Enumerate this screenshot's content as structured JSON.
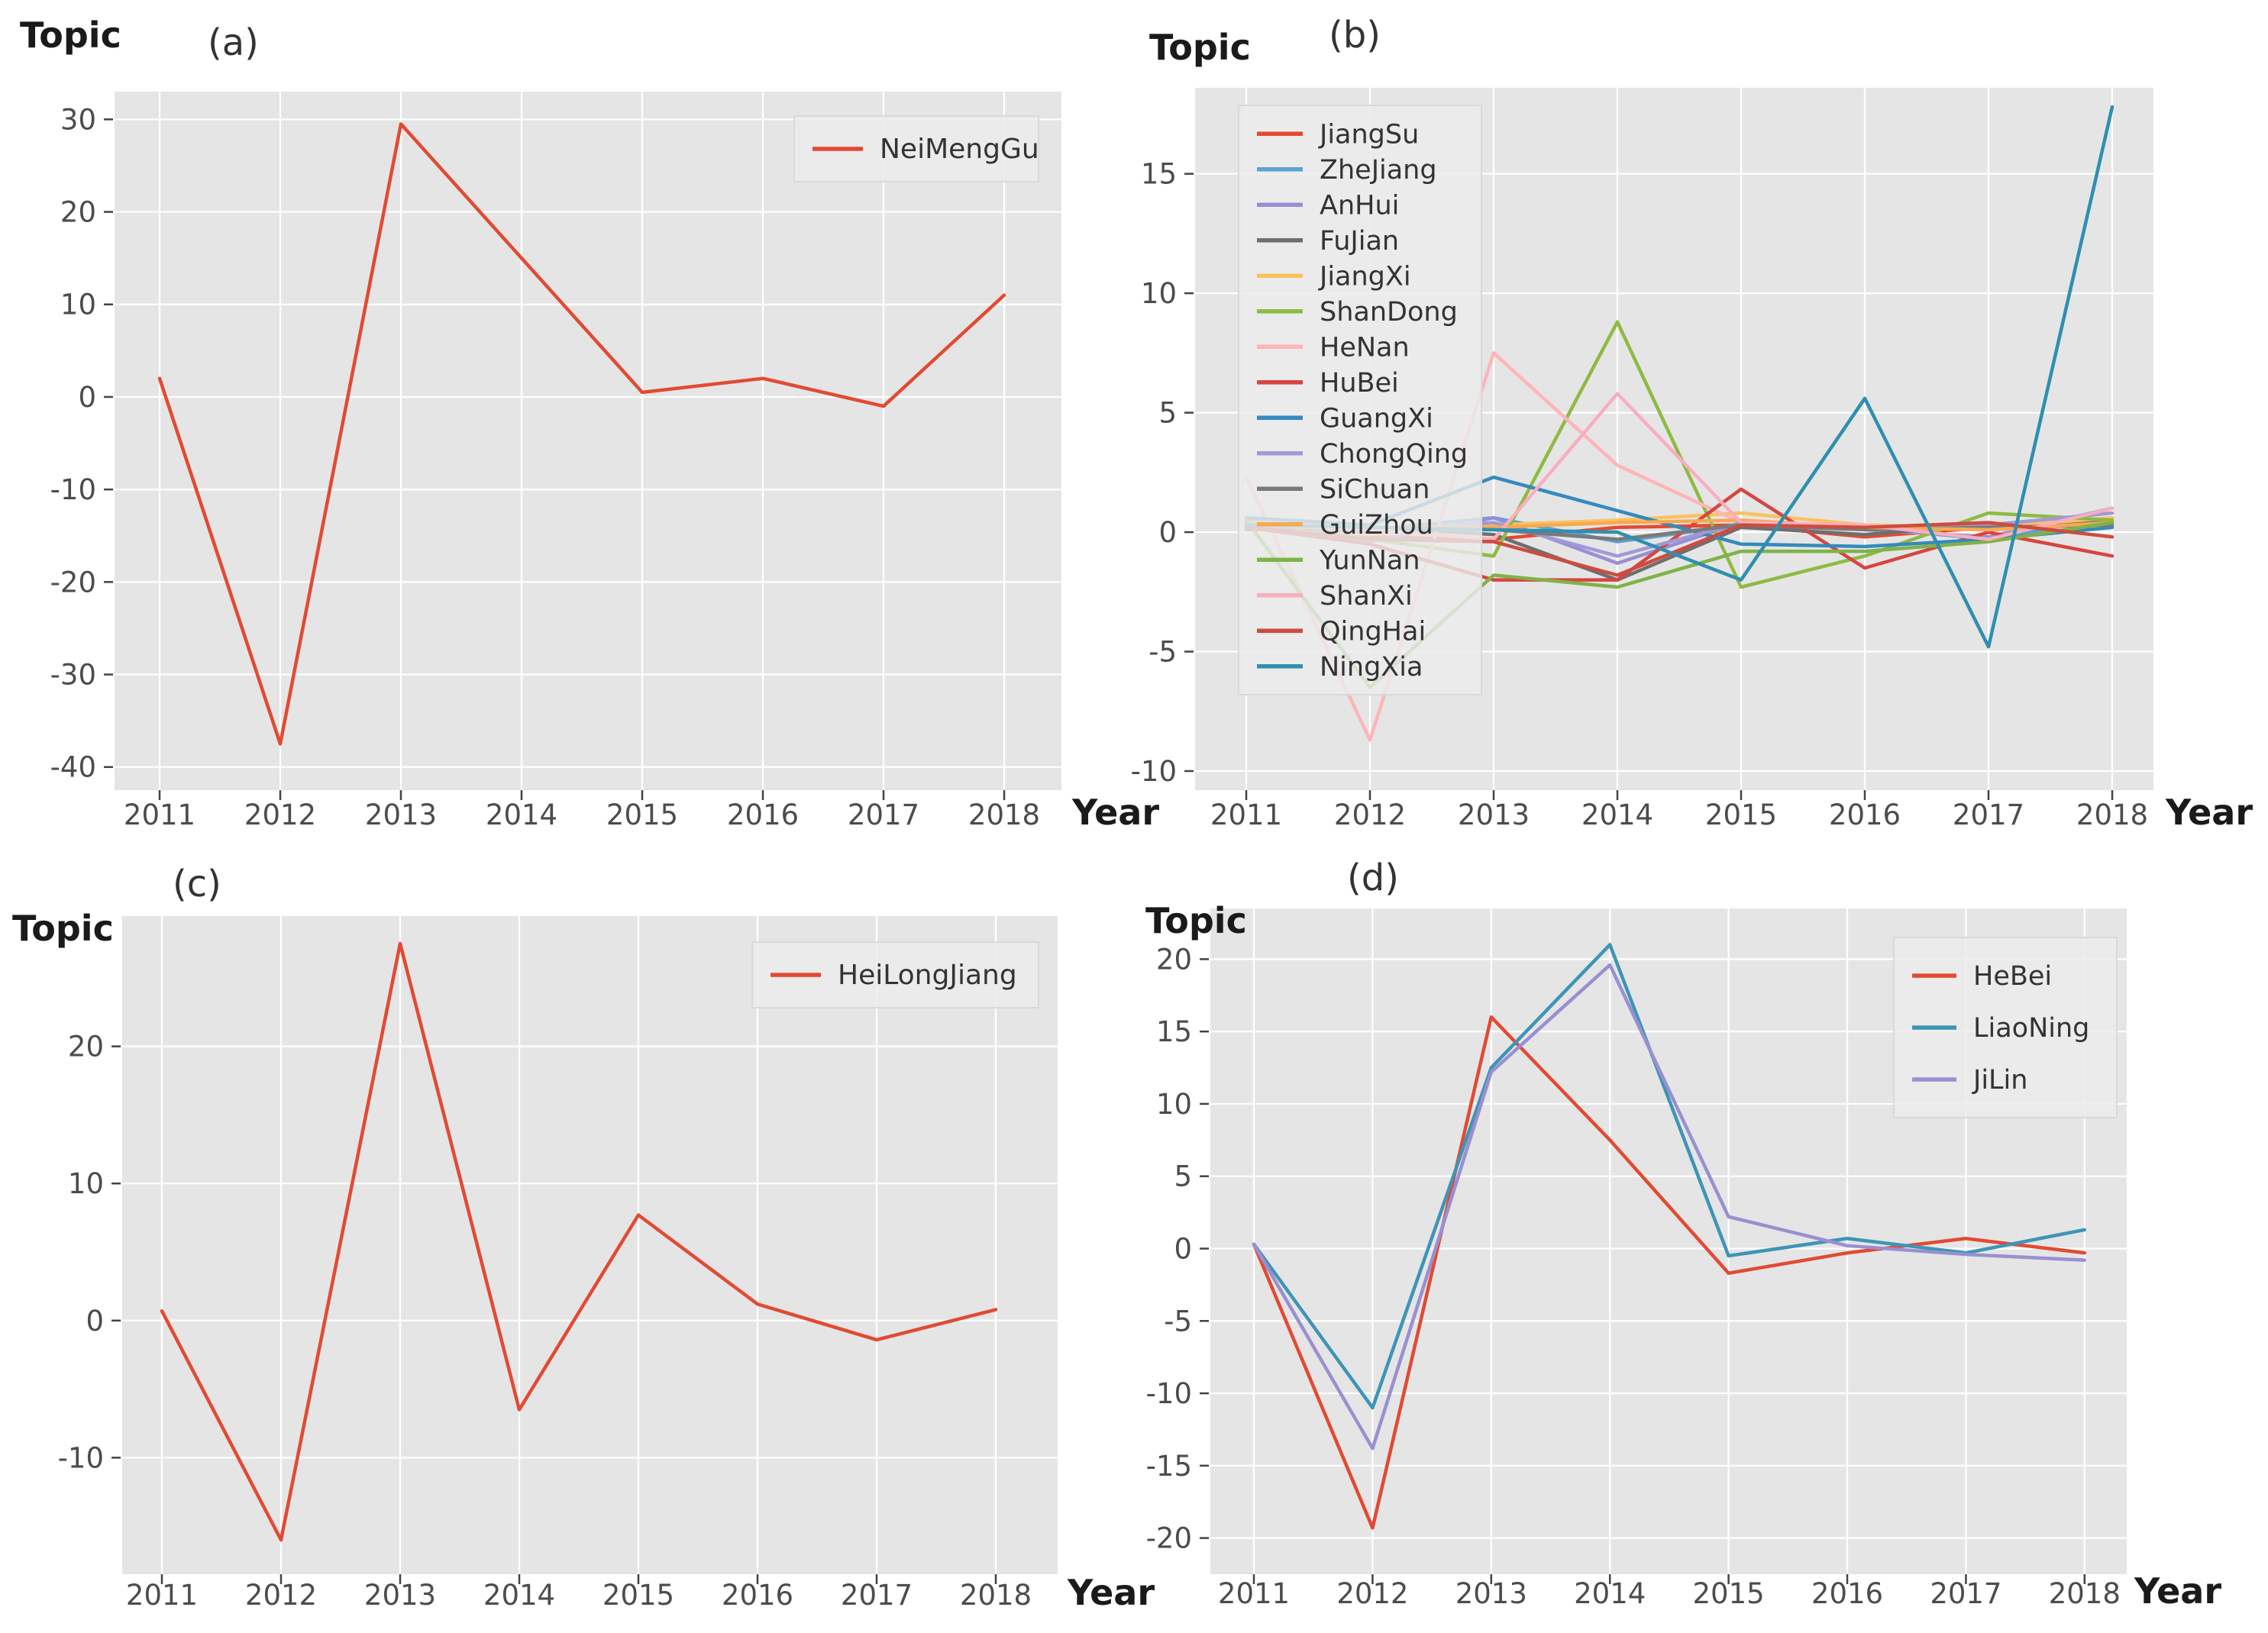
{
  "figure": {
    "background": "#ffffff",
    "plot_background": "#e5e5e5",
    "grid_color": "#ffffff",
    "tick_label_color": "#4c4c4c",
    "axis_label_color": "#1a1a1a",
    "legend_background": "#ebebeb",
    "legend_border": "#d9d9d9",
    "legend_text_color": "#333333"
  },
  "chart_data": [
    {
      "type": "line",
      "panel_label": "(a)",
      "ylabel": "Topic",
      "xlabel": "Year",
      "x": [
        2011,
        2012,
        2013,
        2014,
        2015,
        2016,
        2017,
        2018
      ],
      "yticks": [
        30,
        20,
        10,
        0,
        -10,
        -20,
        -30,
        -40
      ],
      "ylim": [
        -42.5,
        33
      ],
      "grid": true,
      "legend_position": "top-right",
      "series": [
        {
          "name": "NeiMengGu",
          "color": "#E24A33",
          "values": [
            2,
            -37.5,
            29.5,
            15,
            0.5,
            2,
            -1,
            11
          ]
        }
      ]
    },
    {
      "type": "line",
      "panel_label": "(b)",
      "ylabel": "Topic",
      "xlabel": "Year",
      "x": [
        2011,
        2012,
        2013,
        2014,
        2015,
        2016,
        2017,
        2018
      ],
      "yticks": [
        15,
        10,
        5,
        0,
        -5,
        -10
      ],
      "ylim": [
        -10.8,
        18.6
      ],
      "grid": true,
      "legend_position": "top-left",
      "series": [
        {
          "name": "JiangSu",
          "color": "#E24A33",
          "values": [
            0.3,
            -0.2,
            -0.3,
            0.2,
            0.3,
            -0.2,
            0.2,
            0.3
          ]
        },
        {
          "name": "ZheJiang",
          "color": "#5BA3D0",
          "values": [
            0.4,
            0.1,
            0.6,
            -0.4,
            0.3,
            0.2,
            -0.3,
            0.6
          ]
        },
        {
          "name": "AnHui",
          "color": "#988ED5",
          "values": [
            0.2,
            -0.4,
            0.6,
            -1.3,
            0.4,
            0.1,
            -0.2,
            1.0
          ]
        },
        {
          "name": "FuJian",
          "color": "#6e6e6e",
          "values": [
            0.1,
            0.2,
            -0.1,
            -2.0,
            0.2,
            -0.1,
            0.3,
            0.4
          ]
        },
        {
          "name": "JiangXi",
          "color": "#FBC15E",
          "values": [
            0.3,
            -0.1,
            0.3,
            0.5,
            0.8,
            0.3,
            0.2,
            0.6
          ]
        },
        {
          "name": "ShanDong",
          "color": "#8EBA42",
          "values": [
            0.5,
            -0.3,
            -1.0,
            8.8,
            -2.3,
            -1.0,
            0.8,
            0.5
          ]
        },
        {
          "name": "HeNan",
          "color": "#FFB5B8",
          "values": [
            2.3,
            -8.7,
            7.5,
            2.8,
            0.4,
            0.2,
            0.1,
            0.3
          ]
        },
        {
          "name": "HuBei",
          "color": "#D64541",
          "values": [
            0.2,
            -0.5,
            -2.0,
            -2.0,
            1.8,
            -1.5,
            0.0,
            -1.0
          ]
        },
        {
          "name": "GuangXi",
          "color": "#348ABD",
          "values": [
            0.6,
            0.3,
            2.3,
            0.9,
            -0.5,
            -0.6,
            -0.3,
            0.2
          ]
        },
        {
          "name": "ChongQing",
          "color": "#A099D8",
          "values": [
            0.3,
            0.0,
            0.4,
            -1.0,
            0.4,
            0.2,
            0.3,
            0.8
          ]
        },
        {
          "name": "SiChuan",
          "color": "#7a7a7a",
          "values": [
            0.2,
            0.1,
            0.1,
            -0.3,
            0.3,
            0.1,
            0.2,
            0.3
          ]
        },
        {
          "name": "GuiZhou",
          "color": "#F7A951",
          "values": [
            0.4,
            0.2,
            0.2,
            0.4,
            0.5,
            0.2,
            0.1,
            0.4
          ]
        },
        {
          "name": "YunNan",
          "color": "#7FB347",
          "values": [
            0.5,
            -6.5,
            -1.8,
            -2.3,
            -0.8,
            -0.8,
            -0.4,
            0.4
          ]
        },
        {
          "name": "ShanXi",
          "color": "#F9AEC0",
          "values": [
            0.3,
            0.1,
            -0.3,
            5.8,
            0.4,
            0.3,
            -0.3,
            1.0
          ]
        },
        {
          "name": "QingHai",
          "color": "#CE4B3E",
          "values": [
            0.2,
            -0.3,
            -0.4,
            -1.8,
            0.3,
            0.2,
            0.4,
            -0.2
          ]
        },
        {
          "name": "NingXia",
          "color": "#2E8FB0",
          "values": [
            0.3,
            0.2,
            0.1,
            0.0,
            -2.0,
            5.6,
            -4.8,
            17.8
          ]
        }
      ]
    },
    {
      "type": "line",
      "panel_label": "(c)",
      "ylabel": "Topic",
      "xlabel": "Year",
      "x": [
        2011,
        2012,
        2013,
        2014,
        2015,
        2016,
        2017,
        2018
      ],
      "yticks": [
        20,
        10,
        0,
        -10
      ],
      "ylim": [
        -18.5,
        29.5
      ],
      "grid": true,
      "legend_position": "top-right",
      "series": [
        {
          "name": "HeiLongJiang",
          "color": "#E24A33",
          "values": [
            0.7,
            -16,
            27.5,
            -6.5,
            7.7,
            1.2,
            -1.4,
            0.8
          ]
        }
      ]
    },
    {
      "type": "line",
      "panel_label": "(d)",
      "ylabel": "Topic",
      "xlabel": "Year",
      "x": [
        2011,
        2012,
        2013,
        2014,
        2015,
        2016,
        2017,
        2018
      ],
      "yticks": [
        20,
        15,
        10,
        5,
        0,
        -5,
        -10,
        -15,
        -20
      ],
      "ylim": [
        -22.5,
        23.5
      ],
      "grid": true,
      "legend_position": "top-right",
      "series": [
        {
          "name": "HeBei",
          "color": "#E24A33",
          "values": [
            0.3,
            -19.3,
            16,
            7.5,
            -1.7,
            -0.3,
            0.7,
            -0.3
          ]
        },
        {
          "name": "LiaoNing",
          "color": "#3E95B5",
          "values": [
            0.3,
            -11,
            12.5,
            21,
            -0.5,
            0.7,
            -0.3,
            1.3
          ]
        },
        {
          "name": "JiLin",
          "color": "#9A8FD0",
          "values": [
            0.3,
            -13.8,
            12.2,
            19.6,
            2.2,
            0.2,
            -0.4,
            -0.8
          ]
        }
      ]
    }
  ]
}
